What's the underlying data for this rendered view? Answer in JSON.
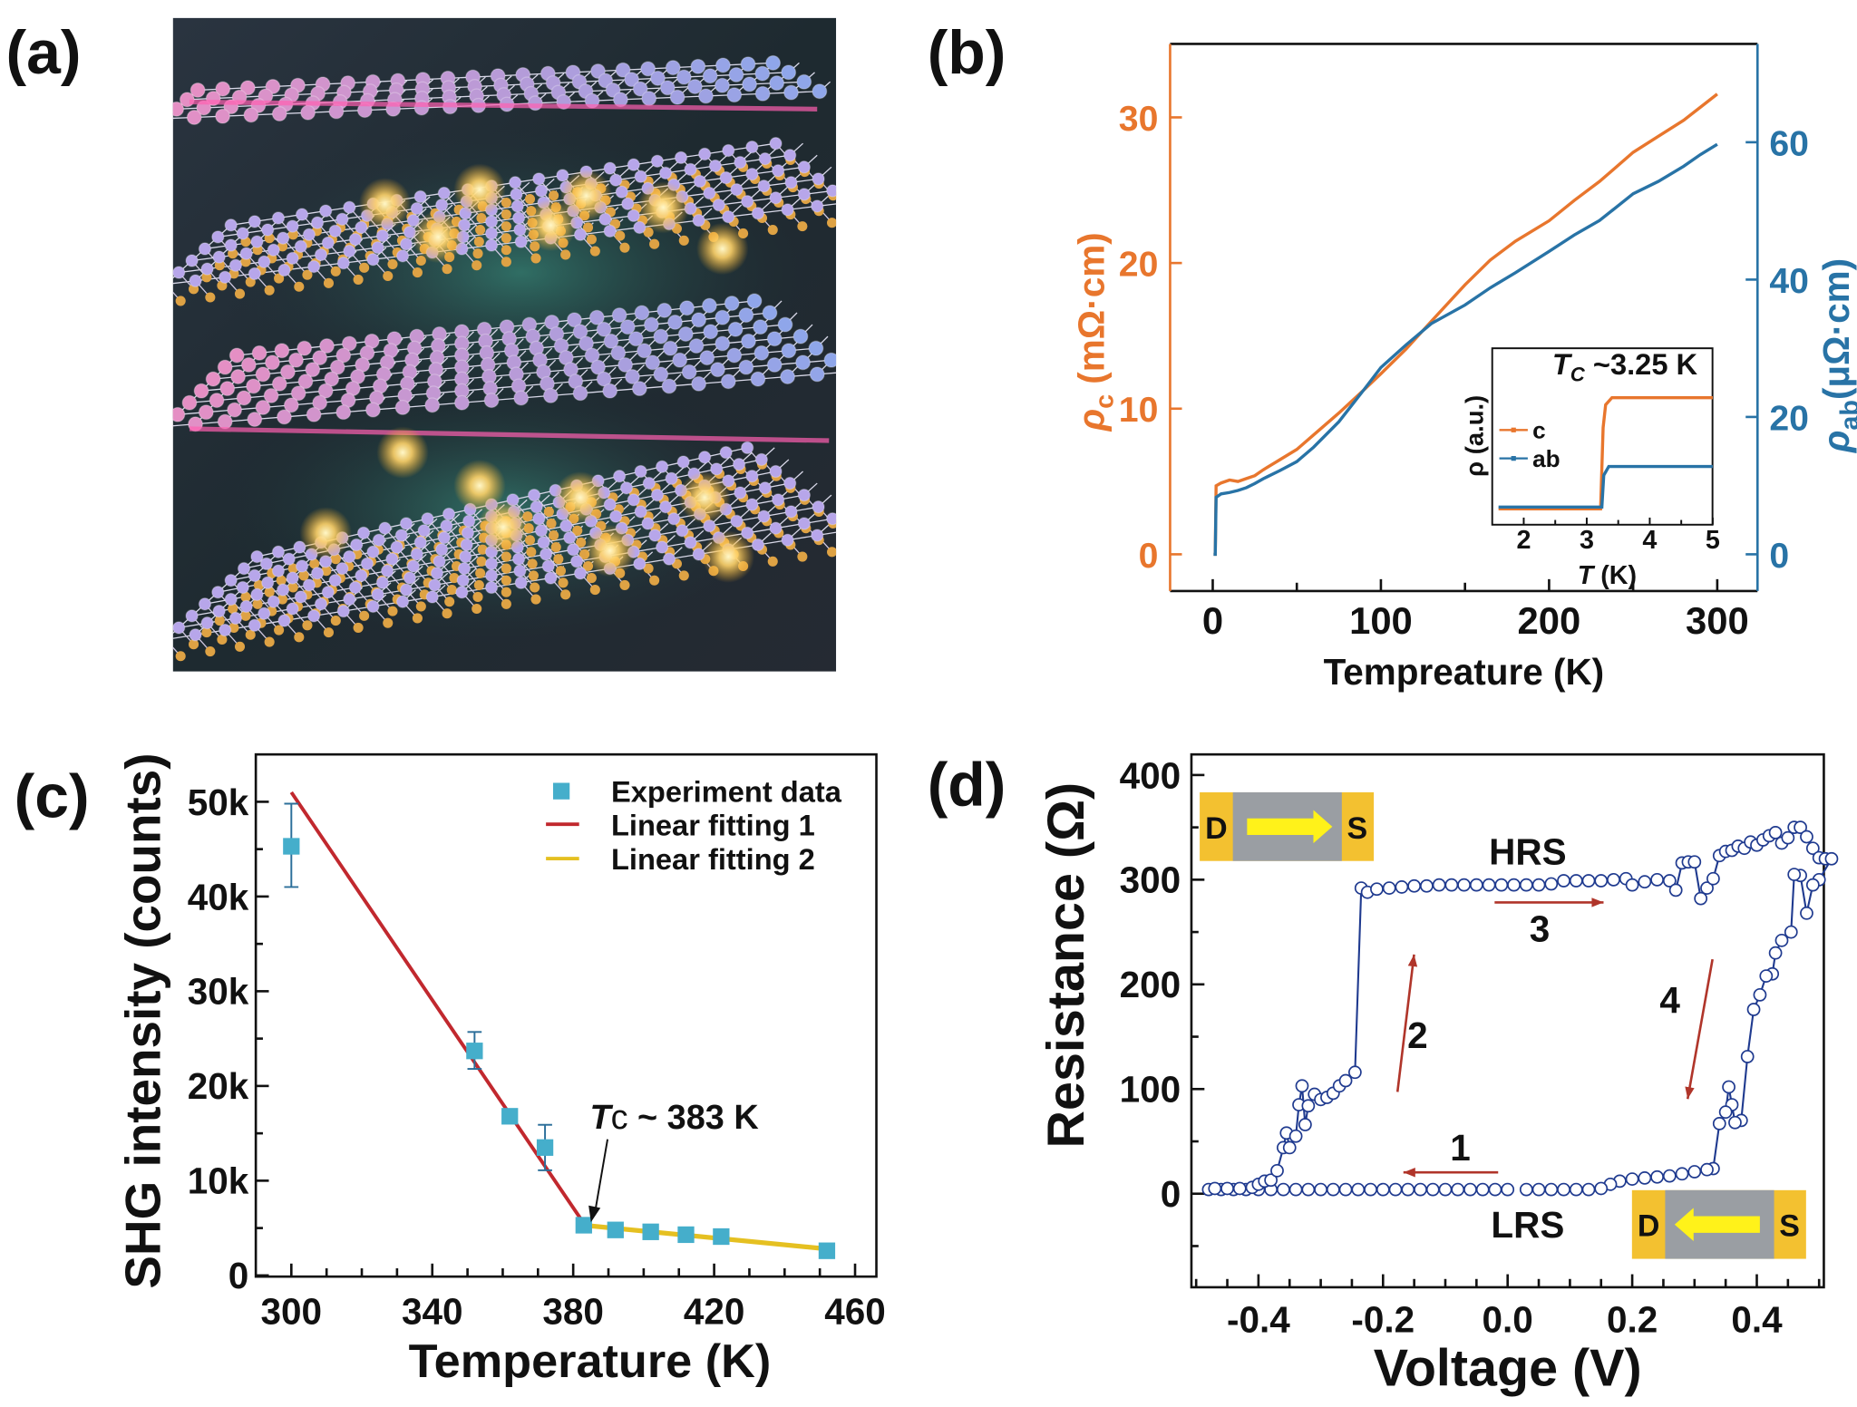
{
  "figure": {
    "panel_labels": [
      "(a)",
      "(b)",
      "(c)",
      "(d)"
    ]
  },
  "panel_a": {
    "type": "illustration",
    "colors": {
      "background": "#1c2731",
      "layer_pink": "#e58fc4",
      "layer_blue": "#8fa6ea",
      "layer_orange": "#dea244",
      "layer_purple": "#b7a6ea",
      "glow": "#ffd36a"
    }
  },
  "chart_data": [
    {
      "panel": "(b)",
      "type": "line",
      "xlabel": "Tempreature (K)",
      "ylabel_left": {
        "symbol": "ρ",
        "sub": "c",
        "unit": " (mΩ·cm)"
      },
      "ylabel_right": {
        "symbol": "ρ",
        "sub": "ab",
        "unit": "(μΩ·cm)"
      },
      "xlim": [
        -25,
        325
      ],
      "ylim_left": [
        -2.5,
        35
      ],
      "ylim_right": [
        -5.3,
        74.3
      ],
      "x_ticks": [
        "0",
        "100",
        "200",
        "300"
      ],
      "y_left_ticks": [
        "0",
        "10",
        "20",
        "30"
      ],
      "y_right_ticks": [
        "0",
        "20",
        "40",
        "60"
      ],
      "colors": {
        "c": "#e8762d",
        "ab": "#2873a6"
      },
      "series": [
        {
          "name": "c",
          "axis": "left",
          "x": [
            0.5,
            1.5,
            2,
            5,
            10,
            15,
            20,
            25,
            30,
            40,
            50,
            60,
            75,
            90,
            100,
            115,
            130,
            150,
            165,
            180,
            200,
            215,
            230,
            250,
            265,
            280,
            290,
            300
          ],
          "y": [
            0,
            0,
            4.7,
            4.9,
            5.1,
            5.0,
            5.2,
            5.4,
            5.8,
            6.5,
            7.2,
            8.2,
            9.7,
            11.3,
            12.4,
            14.1,
            16.0,
            18.5,
            20.2,
            21.5,
            22.9,
            24.3,
            25.6,
            27.6,
            28.7,
            29.8,
            30.7,
            31.6
          ]
        },
        {
          "name": "ab",
          "axis": "right",
          "x": [
            0.5,
            1.5,
            2,
            5,
            10,
            15,
            20,
            25,
            30,
            40,
            50,
            60,
            75,
            90,
            100,
            115,
            130,
            150,
            165,
            180,
            200,
            215,
            230,
            250,
            265,
            280,
            290,
            300
          ],
          "y": [
            0,
            0,
            8.3,
            8.8,
            9.0,
            9.3,
            9.7,
            10.3,
            11.0,
            12.2,
            13.5,
            15.6,
            19.3,
            24.0,
            27.2,
            30.5,
            33.6,
            36.3,
            38.8,
            41.0,
            44.1,
            46.5,
            48.6,
            52.5,
            54.3,
            56.5,
            58.2,
            59.7
          ]
        }
      ],
      "inset": {
        "title": {
          "symbol": "T",
          "sub": "C",
          "rest": " ~3.25 K"
        },
        "xlabel": {
          "symbol": "T",
          "rest": " (K)"
        },
        "ylabel": "ρ (a.u.)",
        "xlim": [
          1.5,
          5
        ],
        "ylim": [
          0,
          1
        ],
        "x_ticks": [
          "2",
          "3",
          "4",
          "5"
        ],
        "legend": [
          "c",
          "ab"
        ],
        "series": [
          {
            "name": "c",
            "x": [
              1.6,
              3.22,
              3.26,
              3.3,
              3.4,
              5
            ],
            "y": [
              0.09,
              0.09,
              0.55,
              0.68,
              0.72,
              0.72
            ]
          },
          {
            "name": "ab",
            "x": [
              1.6,
              3.24,
              3.27,
              3.35,
              5
            ],
            "y": [
              0.1,
              0.1,
              0.28,
              0.33,
              0.33
            ]
          }
        ]
      }
    },
    {
      "panel": "(c)",
      "type": "scatter",
      "xlabel": "Temperature (K)",
      "ylabel": "SHG intensity (counts)",
      "xlim": [
        290,
        466
      ],
      "ylim": [
        0,
        55000
      ],
      "x_ticks": [
        "300",
        "340",
        "380",
        "420",
        "460"
      ],
      "y_ticks": [
        "0",
        "10k",
        "20k",
        "30k",
        "40k",
        "50k"
      ],
      "legend_position": "top-right",
      "legend": [
        "Experiment data",
        "Linear fitting 1",
        "Linear fitting 2"
      ],
      "colors": {
        "data": "#45aecb",
        "fit1": "#c1282e",
        "fit2": "#e5c021",
        "errorbar": "#2c6f9a"
      },
      "points": [
        {
          "x": 300,
          "y": 45300,
          "err_low": 41000,
          "err_high": 49800
        },
        {
          "x": 352,
          "y": 23700,
          "err_low": 21800,
          "err_high": 25700
        },
        {
          "x": 362,
          "y": 16800,
          "err_low": 16200,
          "err_high": 17400
        },
        {
          "x": 372,
          "y": 13500,
          "err_low": 11100,
          "err_high": 15900
        },
        {
          "x": 383,
          "y": 5300,
          "err_low": 4900,
          "err_high": 5700
        },
        {
          "x": 392,
          "y": 4800,
          "err_low": 4400,
          "err_high": 5200
        },
        {
          "x": 402,
          "y": 4600,
          "err_low": 4200,
          "err_high": 5000
        },
        {
          "x": 412,
          "y": 4300,
          "err_low": 3900,
          "err_high": 4700
        },
        {
          "x": 422,
          "y": 4100,
          "err_low": 3700,
          "err_high": 4500
        },
        {
          "x": 452,
          "y": 2600,
          "err_low": 2200,
          "err_high": 3000
        }
      ],
      "fit1": {
        "x": [
          300,
          383
        ],
        "y": [
          51000,
          5500
        ]
      },
      "fit2": {
        "x": [
          383,
          452
        ],
        "y": [
          5300,
          2800
        ]
      },
      "annotation": {
        "symbol": "T",
        "sub": "c",
        "rest": " ~ 383 K",
        "x": 383,
        "y": 5500
      }
    },
    {
      "panel": "(d)",
      "type": "scatter",
      "xlabel": "Voltage (V)",
      "ylabel": "Resistance (Ω)",
      "xlim": [
        -0.506,
        0.508
      ],
      "ylim": [
        -89,
        420
      ],
      "x_ticks": [
        "-0.4",
        "-0.2",
        "0.0",
        "0.2",
        "0.4"
      ],
      "y_ticks": [
        "0",
        "100",
        "200",
        "300",
        "400"
      ],
      "colors": {
        "data": "#1f3a8f",
        "arrows": "#b0352a",
        "electrode": "#f3c130",
        "channel": "#9a9ea3",
        "arrow_fill": "#fff21a"
      },
      "labels": {
        "hrs": "HRS",
        "lrs": "LRS",
        "step1": "1",
        "step2": "2",
        "step3": "3",
        "step4": "4"
      },
      "device_top": {
        "left": "D",
        "right": "S",
        "arrow": "right"
      },
      "device_bottom": {
        "left": "D",
        "right": "S",
        "arrow": "left"
      },
      "points": [
        [
          0.0,
          4
        ],
        [
          -0.02,
          4
        ],
        [
          -0.04,
          4
        ],
        [
          -0.06,
          4
        ],
        [
          -0.08,
          4
        ],
        [
          -0.1,
          4
        ],
        [
          -0.12,
          4
        ],
        [
          -0.14,
          4
        ],
        [
          -0.16,
          4
        ],
        [
          -0.18,
          4
        ],
        [
          -0.2,
          4
        ],
        [
          -0.22,
          4
        ],
        [
          -0.24,
          4
        ],
        [
          -0.26,
          4
        ],
        [
          -0.28,
          4
        ],
        [
          -0.3,
          4
        ],
        [
          -0.32,
          4
        ],
        [
          -0.34,
          4
        ],
        [
          -0.36,
          4
        ],
        [
          -0.38,
          4
        ],
        [
          -0.4,
          4
        ],
        [
          -0.42,
          4
        ],
        [
          -0.44,
          4
        ],
        [
          -0.46,
          4
        ],
        [
          -0.48,
          4
        ],
        [
          -0.47,
          5
        ],
        [
          -0.45,
          5
        ],
        [
          -0.43,
          5
        ],
        [
          -0.41,
          6
        ],
        [
          -0.4,
          9
        ],
        [
          -0.39,
          12
        ],
        [
          -0.38,
          13
        ],
        [
          -0.37,
          22
        ],
        [
          -0.36,
          44
        ],
        [
          -0.355,
          58
        ],
        [
          -0.35,
          44
        ],
        [
          -0.34,
          55
        ],
        [
          -0.335,
          85
        ],
        [
          -0.33,
          103
        ],
        [
          -0.325,
          66
        ],
        [
          -0.32,
          84
        ],
        [
          -0.31,
          95
        ],
        [
          -0.3,
          90
        ],
        [
          -0.29,
          92
        ],
        [
          -0.28,
          96
        ],
        [
          -0.27,
          103
        ],
        [
          -0.26,
          108
        ],
        [
          -0.245,
          116
        ],
        [
          -0.235,
          292
        ],
        [
          -0.225,
          288
        ],
        [
          -0.21,
          291
        ],
        [
          -0.19,
          292
        ],
        [
          -0.17,
          293
        ],
        [
          -0.15,
          294
        ],
        [
          -0.13,
          294
        ],
        [
          -0.11,
          295
        ],
        [
          -0.09,
          295
        ],
        [
          -0.07,
          295
        ],
        [
          -0.05,
          295
        ],
        [
          -0.03,
          295
        ],
        [
          -0.01,
          295
        ],
        [
          0.01,
          295
        ],
        [
          0.03,
          295
        ],
        [
          0.05,
          295
        ],
        [
          0.07,
          296
        ],
        [
          0.09,
          299
        ],
        [
          0.11,
          299
        ],
        [
          0.13,
          299
        ],
        [
          0.15,
          299
        ],
        [
          0.17,
          300
        ],
        [
          0.19,
          301
        ],
        [
          0.2,
          295
        ],
        [
          0.22,
          298
        ],
        [
          0.24,
          300
        ],
        [
          0.26,
          299
        ],
        [
          0.27,
          290
        ],
        [
          0.28,
          316
        ],
        [
          0.29,
          317
        ],
        [
          0.3,
          317
        ],
        [
          0.31,
          282
        ],
        [
          0.32,
          292
        ],
        [
          0.33,
          301
        ],
        [
          0.34,
          323
        ],
        [
          0.35,
          327
        ],
        [
          0.36,
          328
        ],
        [
          0.37,
          332
        ],
        [
          0.38,
          330
        ],
        [
          0.39,
          336
        ],
        [
          0.4,
          333
        ],
        [
          0.41,
          338
        ],
        [
          0.42,
          342
        ],
        [
          0.43,
          345
        ],
        [
          0.44,
          335
        ],
        [
          0.45,
          340
        ],
        [
          0.46,
          350
        ],
        [
          0.47,
          350
        ],
        [
          0.48,
          341
        ],
        [
          0.49,
          330
        ],
        [
          0.5,
          321
        ],
        [
          0.51,
          320
        ],
        [
          0.52,
          320
        ],
        [
          0.5,
          300
        ],
        [
          0.49,
          295
        ],
        [
          0.48,
          268
        ],
        [
          0.47,
          304
        ],
        [
          0.46,
          305
        ],
        [
          0.455,
          250
        ],
        [
          0.44,
          242
        ],
        [
          0.43,
          230
        ],
        [
          0.425,
          210
        ],
        [
          0.415,
          208
        ],
        [
          0.405,
          190
        ],
        [
          0.395,
          176
        ],
        [
          0.385,
          131
        ],
        [
          0.375,
          70
        ],
        [
          0.365,
          68
        ],
        [
          0.36,
          85
        ],
        [
          0.355,
          102
        ],
        [
          0.35,
          78
        ],
        [
          0.34,
          67
        ],
        [
          0.33,
          24
        ],
        [
          0.32,
          23
        ],
        [
          0.3,
          21
        ],
        [
          0.28,
          19
        ],
        [
          0.26,
          17
        ],
        [
          0.24,
          16
        ],
        [
          0.22,
          15
        ],
        [
          0.2,
          14
        ],
        [
          0.18,
          12
        ],
        [
          0.165,
          9
        ],
        [
          0.15,
          5
        ],
        [
          0.13,
          4
        ],
        [
          0.11,
          4
        ],
        [
          0.09,
          4
        ],
        [
          0.07,
          4
        ],
        [
          0.05,
          4
        ],
        [
          0.03,
          4
        ]
      ]
    }
  ]
}
